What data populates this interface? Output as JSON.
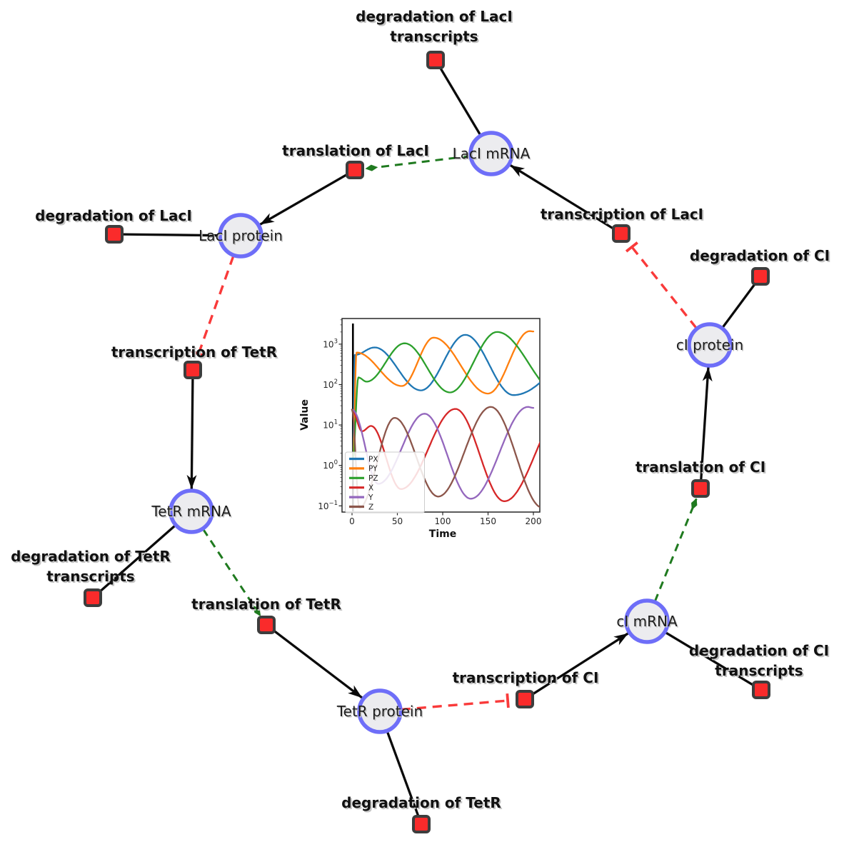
{
  "theme": {
    "species_fill": "#ececef",
    "species_border": "#6e6ef8",
    "reaction_fill": "#fa2b2b",
    "reaction_border": "#3d3d3d",
    "edge_color": "#0a0a0a",
    "catalysis_color": "#1f7a1f",
    "inhibition_color": "#f93a3a",
    "label_color": "#111111",
    "species_label_color": "#1c1c1c",
    "shadow_color": "#c4c4c4"
  },
  "network": {
    "species": [
      {
        "label": "LacI mRNA"
      },
      {
        "label": "LacI protein"
      },
      {
        "label": "TetR mRNA"
      },
      {
        "label": "TetR protein"
      },
      {
        "label": "cI mRNA"
      },
      {
        "label": "cI protein"
      }
    ],
    "reactions": [
      {
        "label_lines": [
          "degradation of LacI",
          "transcripts"
        ]
      },
      {
        "label_lines": [
          "translation of LacI"
        ]
      },
      {
        "label_lines": [
          "transcription of LacI"
        ]
      },
      {
        "label_lines": [
          "degradation of LacI"
        ]
      },
      {
        "label_lines": [
          "transcription of TetR"
        ]
      },
      {
        "label_lines": [
          "degradation of TetR",
          "transcripts"
        ]
      },
      {
        "label_lines": [
          "translation of TetR"
        ]
      },
      {
        "label_lines": [
          "degradation of TetR"
        ]
      },
      {
        "label_lines": [
          "transcription of CI"
        ]
      },
      {
        "label_lines": [
          "degradation of CI",
          "transcripts"
        ]
      },
      {
        "label_lines": [
          "translation of CI"
        ]
      },
      {
        "label_lines": [
          "degradation of CI"
        ]
      }
    ],
    "edges": [
      {
        "from": "LacI mRNA",
        "to": "degradation of LacI transcripts",
        "type": "consumption"
      },
      {
        "from": "translation of LacI",
        "to": "LacI protein",
        "type": "production"
      },
      {
        "from": "transcription of LacI",
        "to": "LacI mRNA",
        "type": "production"
      },
      {
        "from": "LacI protein",
        "to": "degradation of LacI",
        "type": "consumption"
      },
      {
        "from": "transcription of TetR",
        "to": "TetR mRNA",
        "type": "production"
      },
      {
        "from": "TetR mRNA",
        "to": "degradation of TetR transcripts",
        "type": "consumption"
      },
      {
        "from": "translation of TetR",
        "to": "TetR protein",
        "type": "production"
      },
      {
        "from": "TetR protein",
        "to": "degradation of TetR",
        "type": "consumption"
      },
      {
        "from": "transcription of CI",
        "to": "cI mRNA",
        "type": "production"
      },
      {
        "from": "cI mRNA",
        "to": "degradation of CI transcripts",
        "type": "consumption"
      },
      {
        "from": "translation of CI",
        "to": "cI protein",
        "type": "production"
      },
      {
        "from": "cI protein",
        "to": "degradation of CI",
        "type": "consumption"
      },
      {
        "from": "LacI mRNA",
        "to": "translation of LacI",
        "type": "modifier"
      },
      {
        "from": "TetR mRNA",
        "to": "translation of TetR",
        "type": "modifier"
      },
      {
        "from": "cI mRNA",
        "to": "translation of CI",
        "type": "modifier"
      },
      {
        "from": "LacI protein",
        "to": "transcription of TetR",
        "type": "inhibition"
      },
      {
        "from": "TetR protein",
        "to": "transcription of CI",
        "type": "inhibition"
      },
      {
        "from": "cI protein",
        "to": "transcription of LacI",
        "type": "inhibition"
      }
    ]
  },
  "chart_data": {
    "type": "line",
    "title": "",
    "xlabel": "Time",
    "ylabel": "Value",
    "yscale": "log",
    "xlim": [
      -10,
      210
    ],
    "ylim": [
      0.07,
      4300
    ],
    "x_ticks": [
      0,
      50,
      100,
      150,
      200
    ],
    "y_tick_exponents": [
      -1,
      0,
      1,
      2,
      3
    ],
    "legend_position": "lower left",
    "vline_x": 1,
    "series": [
      {
        "name": "PX",
        "color": "#1f77b4",
        "keypoints": [
          [
            1,
            1.5
          ],
          [
            3,
            540
          ],
          [
            25,
            830
          ],
          [
            76,
            72
          ],
          [
            125,
            1700
          ],
          [
            178,
            55
          ],
          [
            278,
            2000
          ]
        ]
      },
      {
        "name": "PY",
        "color": "#ff7f0e",
        "keypoints": [
          [
            1,
            1.5
          ],
          [
            5,
            620
          ],
          [
            55,
            92
          ],
          [
            90,
            1450
          ],
          [
            150,
            60
          ],
          [
            196,
            2100
          ],
          [
            200,
            2060
          ]
        ]
      },
      {
        "name": "PZ",
        "color": "#2ca02c",
        "keypoints": [
          [
            1,
            1.5
          ],
          [
            7,
            150
          ],
          [
            16,
            118
          ],
          [
            58,
            1050
          ],
          [
            108,
            64
          ],
          [
            160,
            2000
          ],
          [
            230,
            55
          ]
        ]
      },
      {
        "name": "X",
        "color": "#d62728",
        "keypoints": [
          [
            0,
            24
          ],
          [
            11,
            7
          ],
          [
            21,
            9.5
          ],
          [
            54,
            0.26
          ],
          [
            114,
            25
          ],
          [
            168,
            0.13
          ],
          [
            235,
            25
          ]
        ]
      },
      {
        "name": "Y",
        "color": "#9467bd",
        "keypoints": [
          [
            0,
            24
          ],
          [
            29,
            0.35
          ],
          [
            80,
            19
          ],
          [
            131,
            0.15
          ],
          [
            194,
            28
          ],
          [
            200,
            26.5
          ]
        ]
      },
      {
        "name": "Z",
        "color": "#8c564b",
        "keypoints": [
          [
            0,
            24
          ],
          [
            8,
            0.09
          ],
          [
            47,
            15
          ],
          [
            95,
            0.17
          ],
          [
            153,
            28
          ],
          [
            210,
            0.09
          ]
        ]
      }
    ]
  }
}
